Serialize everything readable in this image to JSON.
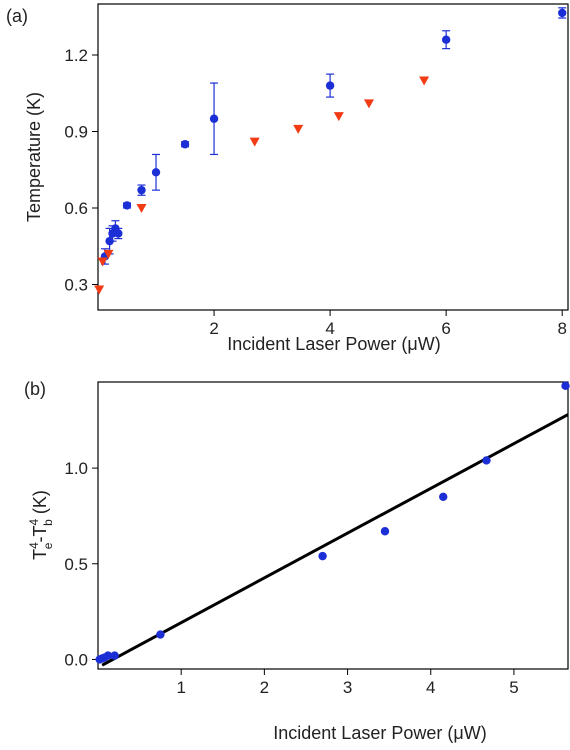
{
  "chart_data": [
    {
      "panel": "(a)",
      "type": "scatter",
      "xlabel": "Incident Laser Power (μW)",
      "ylabel": "Temperature (K)",
      "xlim": [
        0,
        8.1
      ],
      "ylim": [
        0.2,
        1.4
      ],
      "xticks": [
        2,
        4,
        6,
        8
      ],
      "yticks": [
        0.3,
        0.6,
        0.9,
        1.2
      ],
      "xtick_labels": [
        "2",
        "4",
        "6",
        "8"
      ],
      "ytick_labels": [
        "0.3",
        "0.6",
        "0.9",
        "1.2"
      ],
      "grid": false,
      "series": [
        {
          "marker": "circle",
          "color": "#1c2fd6",
          "points": [
            {
              "x": 0.12,
              "y": 0.41,
              "err": 0.03
            },
            {
              "x": 0.2,
              "y": 0.47,
              "err": 0.05
            },
            {
              "x": 0.25,
              "y": 0.5,
              "err": 0.03
            },
            {
              "x": 0.3,
              "y": 0.52,
              "err": 0.03
            },
            {
              "x": 0.35,
              "y": 0.5,
              "err": 0.02
            },
            {
              "x": 0.5,
              "y": 0.61,
              "err": 0.01
            },
            {
              "x": 0.75,
              "y": 0.67,
              "err": 0.02
            },
            {
              "x": 1.0,
              "y": 0.74,
              "err": 0.07
            },
            {
              "x": 1.5,
              "y": 0.85,
              "err": 0.01
            },
            {
              "x": 2.0,
              "y": 0.95,
              "err": 0.14
            },
            {
              "x": 4.0,
              "y": 1.08,
              "err": 0.045
            },
            {
              "x": 6.0,
              "y": 1.26,
              "err": 0.035
            },
            {
              "x": 8.0,
              "y": 1.365,
              "err": 0.02
            }
          ]
        },
        {
          "marker": "triangle-down",
          "color": "#f23a14",
          "points": [
            {
              "x": 0.02,
              "y": 0.28
            },
            {
              "x": 0.08,
              "y": 0.39
            },
            {
              "x": 0.18,
              "y": 0.42
            },
            {
              "x": 0.75,
              "y": 0.6
            },
            {
              "x": 2.7,
              "y": 0.86
            },
            {
              "x": 3.45,
              "y": 0.91
            },
            {
              "x": 4.15,
              "y": 0.96
            },
            {
              "x": 4.67,
              "y": 1.01
            },
            {
              "x": 5.62,
              "y": 1.1
            }
          ]
        }
      ]
    },
    {
      "panel": "(b)",
      "type": "scatter",
      "xlabel": "Incident Laser Power (μW)",
      "ylabel_parts": [
        "T",
        "e",
        "4",
        "-T",
        "b",
        "4",
        " (K)"
      ],
      "xlim": [
        0,
        5.65
      ],
      "ylim": [
        -0.05,
        1.45
      ],
      "xticks": [
        1,
        2,
        3,
        4,
        5
      ],
      "yticks": [
        0.0,
        0.5,
        1.0
      ],
      "xtick_labels": [
        "1",
        "2",
        "3",
        "4",
        "5"
      ],
      "ytick_labels": [
        "0.0",
        "0.5",
        "1.0"
      ],
      "grid": false,
      "series": [
        {
          "marker": "circle",
          "color": "#1c2fd6",
          "points": [
            {
              "x": 0.02,
              "y": 0.0
            },
            {
              "x": 0.05,
              "y": 0.005
            },
            {
              "x": 0.08,
              "y": 0.01
            },
            {
              "x": 0.12,
              "y": 0.02
            },
            {
              "x": 0.2,
              "y": 0.02
            },
            {
              "x": 0.75,
              "y": 0.13
            },
            {
              "x": 2.7,
              "y": 0.54
            },
            {
              "x": 3.45,
              "y": 0.67
            },
            {
              "x": 4.15,
              "y": 0.85
            },
            {
              "x": 4.67,
              "y": 1.04
            },
            {
              "x": 5.62,
              "y": 1.43
            }
          ]
        }
      ],
      "fit_line": {
        "type": "line",
        "color": "#000000",
        "points": [
          {
            "x": 0.05,
            "y": -0.03
          },
          {
            "x": 5.65,
            "y": 1.28
          }
        ]
      }
    }
  ]
}
